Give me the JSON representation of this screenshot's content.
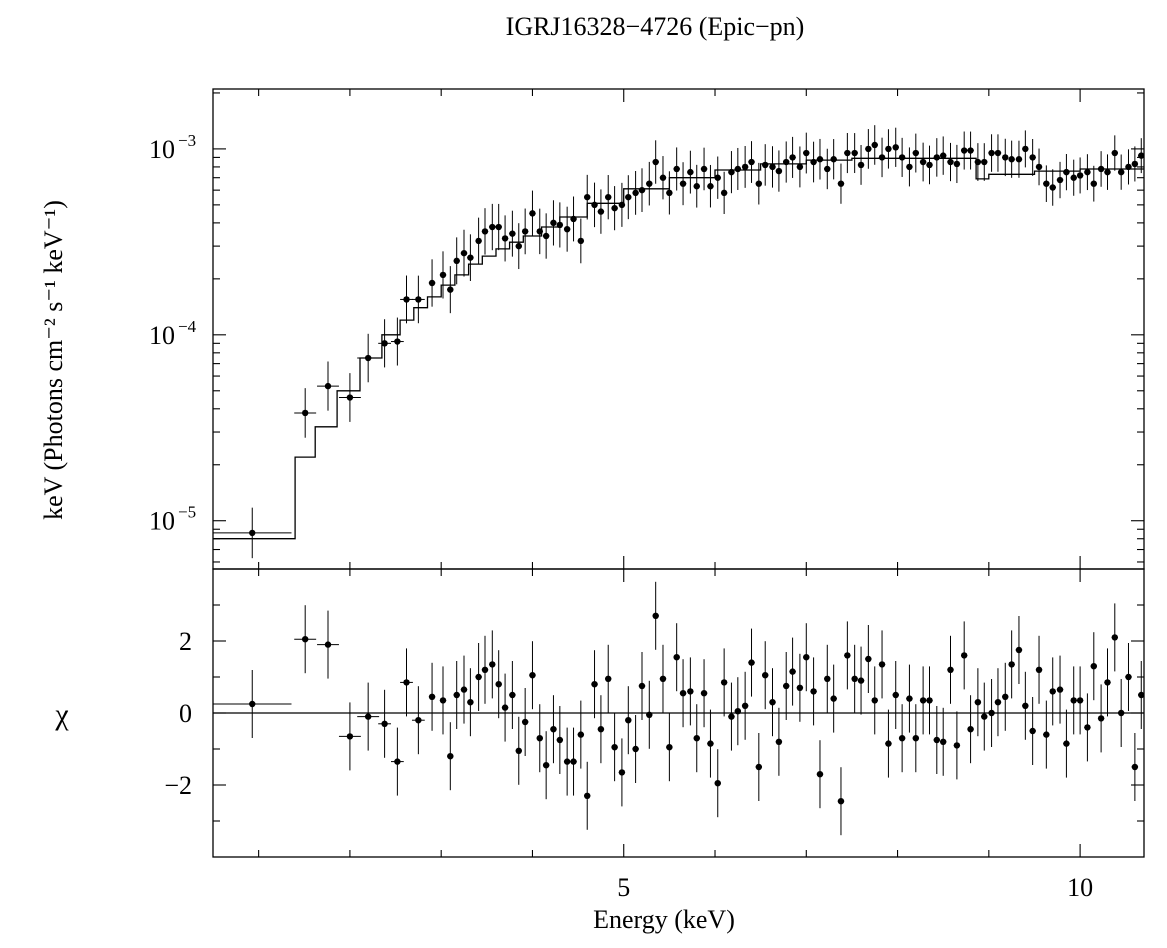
{
  "chart_data": [
    {
      "type": "scatter",
      "panel": "spectrum",
      "title": "IGRJ16328−4726 (Epic−pn)",
      "xlabel": "",
      "ylabel": "keV (Photons cm⁻² s⁻¹ keV⁻¹)",
      "xlim": [
        0.5,
        10.7
      ],
      "yscale": "log",
      "ylim": [
        5.5e-06,
        0.0021
      ],
      "yticks": [
        {
          "value": 1e-05,
          "label": "10",
          "exp": "−5"
        },
        {
          "value": 0.0001,
          "label": "10",
          "exp": "−4"
        },
        {
          "value": 0.001,
          "label": "10",
          "exp": "−3"
        }
      ],
      "series": [
        {
          "name": "data",
          "points": [
            [
              0.93,
              8.6e-06
            ],
            [
              1.51,
              3.8e-05
            ],
            [
              1.76,
              5.3e-05
            ],
            [
              2.0,
              4.6e-05
            ],
            [
              2.2,
              7.5e-05
            ],
            [
              2.38,
              9e-05
            ],
            [
              2.52,
              9.2e-05
            ],
            [
              2.62,
              0.000155
            ],
            [
              2.75,
              0.000155
            ],
            [
              2.9,
              0.00019
            ],
            [
              3.02,
              0.00021
            ],
            [
              3.1,
              0.000175
            ],
            [
              3.17,
              0.00025
            ],
            [
              3.25,
              0.000275
            ],
            [
              3.32,
              0.00026
            ],
            [
              3.41,
              0.00032
            ],
            [
              3.48,
              0.00036
            ],
            [
              3.56,
              0.00038
            ],
            [
              3.63,
              0.00038
            ],
            [
              3.7,
              0.00033
            ],
            [
              3.78,
              0.00035
            ],
            [
              3.85,
              0.0003
            ],
            [
              3.92,
              0.00036
            ],
            [
              4.0,
              0.00045
            ],
            [
              4.08,
              0.00036
            ],
            [
              4.15,
              0.00034
            ],
            [
              4.23,
              0.0004
            ],
            [
              4.3,
              0.00039
            ],
            [
              4.38,
              0.00037
            ],
            [
              4.45,
              0.00042
            ],
            [
              4.53,
              0.00032
            ],
            [
              4.6,
              0.00055
            ],
            [
              4.68,
              0.0005
            ],
            [
              4.75,
              0.00046
            ],
            [
              4.83,
              0.00055
            ],
            [
              4.9,
              0.00048
            ],
            [
              4.98,
              0.0005
            ],
            [
              5.05,
              0.00055
            ],
            [
              5.13,
              0.00058
            ],
            [
              5.2,
              0.0006
            ],
            [
              5.28,
              0.00065
            ],
            [
              5.35,
              0.00085
            ],
            [
              5.43,
              0.0007
            ],
            [
              5.5,
              0.00058
            ],
            [
              5.58,
              0.00078
            ],
            [
              5.65,
              0.00065
            ],
            [
              5.73,
              0.00075
            ],
            [
              5.8,
              0.00063
            ],
            [
              5.88,
              0.00078
            ],
            [
              5.95,
              0.00063
            ],
            [
              6.03,
              0.0007
            ],
            [
              6.1,
              0.00058
            ],
            [
              6.18,
              0.00075
            ],
            [
              6.25,
              0.00078
            ],
            [
              6.33,
              0.0008
            ],
            [
              6.4,
              0.00085
            ],
            [
              6.48,
              0.00065
            ],
            [
              6.55,
              0.00082
            ],
            [
              6.63,
              0.0008
            ],
            [
              6.7,
              0.00076
            ],
            [
              6.78,
              0.00085
            ],
            [
              6.85,
              0.0009
            ],
            [
              6.93,
              0.0008
            ],
            [
              7.0,
              0.00095
            ],
            [
              7.08,
              0.00085
            ],
            [
              7.15,
              0.00088
            ],
            [
              7.23,
              0.00078
            ],
            [
              7.3,
              0.00088
            ],
            [
              7.38,
              0.00065
            ],
            [
              7.45,
              0.00095
            ],
            [
              7.53,
              0.00095
            ],
            [
              7.6,
              0.00082
            ],
            [
              7.68,
              0.001
            ],
            [
              7.75,
              0.00105
            ],
            [
              7.83,
              0.0009
            ],
            [
              7.9,
              0.001
            ],
            [
              7.98,
              0.00102
            ],
            [
              8.05,
              0.0009
            ],
            [
              8.13,
              0.0008
            ],
            [
              8.2,
              0.00095
            ],
            [
              8.28,
              0.00085
            ],
            [
              8.35,
              0.00082
            ],
            [
              8.43,
              0.0009
            ],
            [
              8.5,
              0.00092
            ],
            [
              8.58,
              0.00085
            ],
            [
              8.65,
              0.00083
            ],
            [
              8.73,
              0.00098
            ],
            [
              8.8,
              0.00098
            ],
            [
              8.88,
              0.00085
            ],
            [
              8.95,
              0.00085
            ],
            [
              9.03,
              0.00095
            ],
            [
              9.1,
              0.00095
            ],
            [
              9.18,
              0.0009
            ],
            [
              9.25,
              0.00088
            ],
            [
              9.33,
              0.00088
            ],
            [
              9.4,
              0.001
            ],
            [
              9.48,
              0.0009
            ],
            [
              9.55,
              0.0008
            ],
            [
              9.63,
              0.00065
            ],
            [
              9.7,
              0.00062
            ],
            [
              9.78,
              0.00068
            ],
            [
              9.85,
              0.00075
            ],
            [
              9.93,
              0.0007
            ],
            [
              10.0,
              0.00072
            ],
            [
              10.08,
              0.00075
            ],
            [
              10.15,
              0.00065
            ],
            [
              10.23,
              0.00078
            ],
            [
              10.3,
              0.00075
            ],
            [
              10.38,
              0.00095
            ],
            [
              10.45,
              0.00075
            ],
            [
              10.53,
              0.0008
            ],
            [
              10.6,
              0.00083
            ],
            [
              10.67,
              0.00092
            ]
          ]
        },
        {
          "name": "model",
          "step_x": [
            0.5,
            1.4,
            1.62,
            1.86,
            2.11,
            2.35,
            2.55,
            2.7,
            2.85,
            3.0,
            3.15,
            3.3,
            3.45,
            3.6,
            3.75,
            3.9,
            4.1,
            4.3,
            4.6,
            5.0,
            5.5,
            6.0,
            6.5,
            7.0,
            7.5,
            8.0,
            8.5,
            8.86,
            9.0,
            9.5,
            10.0,
            10.7
          ],
          "step_y": [
            8e-06,
            2.2e-05,
            3.2e-05,
            5e-05,
            7.5e-05,
            0.0001,
            0.00012,
            0.00014,
            0.00016,
            0.000185,
            0.00021,
            0.00024,
            0.000265,
            0.00029,
            0.000315,
            0.00034,
            0.00038,
            0.00043,
            0.00051,
            0.00061,
            0.0007,
            0.00077,
            0.00083,
            0.00087,
            0.00089,
            0.00089,
            0.00089,
            0.00069,
            0.00073,
            0.00076,
            0.00078,
            0.00078
          ]
        }
      ]
    },
    {
      "type": "scatter",
      "panel": "residuals",
      "xlabel": "Energy (keV)",
      "ylabel": "χ",
      "xlim": [
        0.5,
        10.7
      ],
      "ylim": [
        -4.0,
        4.0
      ],
      "xticks": [
        {
          "value": 5,
          "label": "5"
        },
        {
          "value": 10,
          "label": "10"
        }
      ],
      "yticks": [
        {
          "value": -2,
          "label": "−2"
        },
        {
          "value": 0,
          "label": "0"
        },
        {
          "value": 2,
          "label": "2"
        }
      ],
      "zero_line": 0,
      "series": [
        {
          "name": "residuals",
          "points": [
            [
              0.93,
              0.25
            ],
            [
              1.51,
              2.05
            ],
            [
              1.76,
              1.9
            ],
            [
              2.0,
              -0.65
            ],
            [
              2.2,
              -0.1
            ],
            [
              2.38,
              -0.3
            ],
            [
              2.52,
              -1.35
            ],
            [
              2.62,
              0.85
            ],
            [
              2.75,
              -0.2
            ],
            [
              2.9,
              0.45
            ],
            [
              3.02,
              0.35
            ],
            [
              3.1,
              -1.2
            ],
            [
              3.17,
              0.5
            ],
            [
              3.25,
              0.65
            ],
            [
              3.32,
              0.3
            ],
            [
              3.41,
              1.0
            ],
            [
              3.48,
              1.2
            ],
            [
              3.56,
              1.35
            ],
            [
              3.63,
              0.8
            ],
            [
              3.7,
              0.15
            ],
            [
              3.78,
              0.5
            ],
            [
              3.85,
              -1.05
            ],
            [
              3.92,
              -0.25
            ],
            [
              4.0,
              1.05
            ],
            [
              4.08,
              -0.7
            ],
            [
              4.15,
              -1.45
            ],
            [
              4.23,
              -0.45
            ],
            [
              4.3,
              -0.75
            ],
            [
              4.38,
              -1.35
            ],
            [
              4.45,
              -1.35
            ],
            [
              4.53,
              -0.6
            ],
            [
              4.6,
              -2.3
            ],
            [
              4.68,
              0.8
            ],
            [
              4.75,
              -0.45
            ],
            [
              4.83,
              0.95
            ],
            [
              4.9,
              -0.95
            ],
            [
              4.98,
              -1.65
            ],
            [
              5.05,
              -0.2
            ],
            [
              5.13,
              -1.0
            ],
            [
              5.2,
              0.75
            ],
            [
              5.28,
              -0.05
            ],
            [
              5.35,
              2.7
            ],
            [
              5.43,
              0.95
            ],
            [
              5.5,
              -0.95
            ],
            [
              5.58,
              1.55
            ],
            [
              5.65,
              0.55
            ],
            [
              5.73,
              0.6
            ],
            [
              5.8,
              -0.7
            ],
            [
              5.88,
              0.55
            ],
            [
              5.95,
              -0.85
            ],
            [
              6.03,
              -1.95
            ],
            [
              6.1,
              0.85
            ],
            [
              6.18,
              -0.1
            ],
            [
              6.25,
              0.05
            ],
            [
              6.33,
              0.2
            ],
            [
              6.4,
              1.4
            ],
            [
              6.48,
              -1.5
            ],
            [
              6.55,
              1.05
            ],
            [
              6.63,
              0.3
            ],
            [
              6.7,
              -0.8
            ],
            [
              6.78,
              0.75
            ],
            [
              6.85,
              1.15
            ],
            [
              6.93,
              0.7
            ],
            [
              7.0,
              1.55
            ],
            [
              7.08,
              0.6
            ],
            [
              7.15,
              -1.7
            ],
            [
              7.23,
              0.95
            ],
            [
              7.3,
              0.4
            ],
            [
              7.38,
              -2.45
            ],
            [
              7.45,
              1.6
            ],
            [
              7.53,
              0.95
            ],
            [
              7.6,
              0.9
            ],
            [
              7.68,
              1.5
            ],
            [
              7.75,
              0.35
            ],
            [
              7.83,
              1.35
            ],
            [
              7.9,
              -0.85
            ],
            [
              7.98,
              0.5
            ],
            [
              8.05,
              -0.7
            ],
            [
              8.13,
              0.4
            ],
            [
              8.2,
              -0.7
            ],
            [
              8.28,
              0.35
            ],
            [
              8.35,
              0.35
            ],
            [
              8.43,
              -0.75
            ],
            [
              8.5,
              -0.8
            ],
            [
              8.58,
              1.2
            ],
            [
              8.65,
              -0.9
            ],
            [
              8.73,
              1.6
            ],
            [
              8.8,
              -0.45
            ],
            [
              8.88,
              0.3
            ],
            [
              8.95,
              -0.1
            ],
            [
              9.03,
              0.0
            ],
            [
              9.1,
              0.3
            ],
            [
              9.18,
              0.45
            ],
            [
              9.25,
              1.35
            ],
            [
              9.33,
              1.75
            ],
            [
              9.4,
              0.2
            ],
            [
              9.48,
              -0.5
            ],
            [
              9.55,
              1.2
            ],
            [
              9.63,
              -0.6
            ],
            [
              9.7,
              0.6
            ],
            [
              9.78,
              0.65
            ],
            [
              9.85,
              -0.85
            ],
            [
              9.93,
              0.35
            ],
            [
              10.0,
              0.35
            ],
            [
              10.08,
              -0.4
            ],
            [
              10.15,
              1.3
            ],
            [
              10.23,
              -0.15
            ],
            [
              10.3,
              0.85
            ],
            [
              10.38,
              2.1
            ],
            [
              10.45,
              0.0
            ],
            [
              10.53,
              1.0
            ],
            [
              10.6,
              -1.5
            ],
            [
              10.67,
              0.5
            ]
          ]
        }
      ]
    }
  ]
}
